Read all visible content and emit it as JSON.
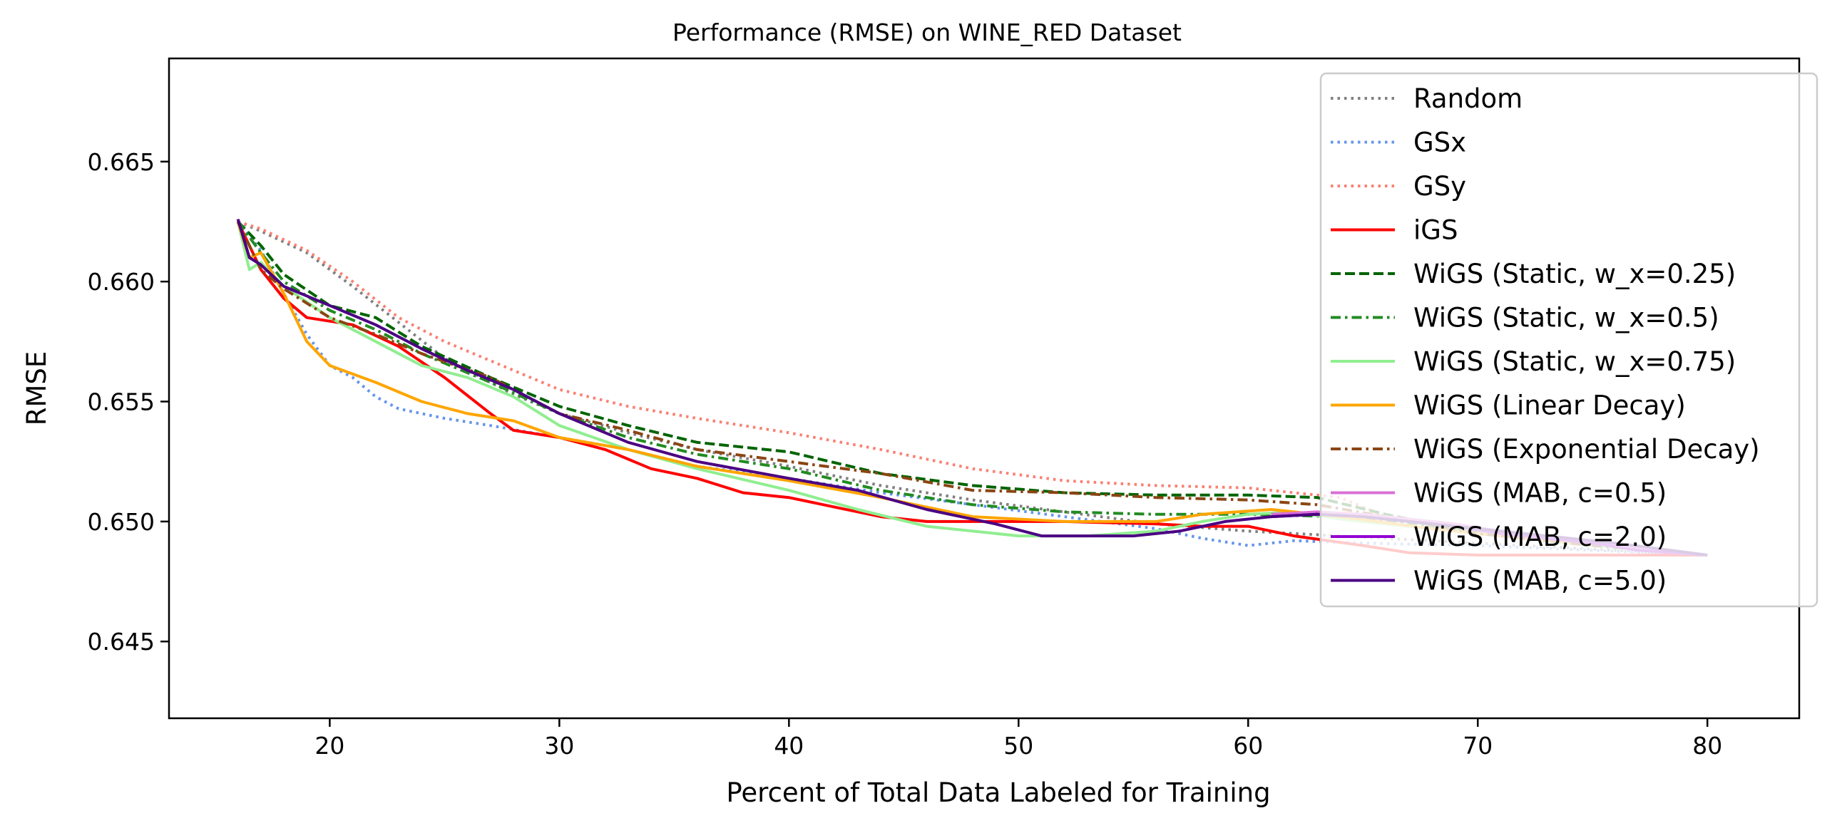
{
  "chart_data": {
    "type": "line",
    "title": "Performance (RMSE) on WINE_RED Dataset",
    "xlabel": "Percent of Total Data Labeled for Training",
    "ylabel": "RMSE",
    "xlim": [
      13,
      84
    ],
    "ylim": [
      0.6418,
      0.6693
    ],
    "xticks": [
      20,
      30,
      40,
      50,
      60,
      70,
      80
    ],
    "yticks": [
      0.645,
      0.65,
      0.655,
      0.66,
      0.665
    ],
    "xtick_labels": [
      "20",
      "30",
      "40",
      "50",
      "60",
      "70",
      "80"
    ],
    "ytick_labels": [
      "0.645",
      "0.650",
      "0.655",
      "0.660",
      "0.665"
    ],
    "grid": false,
    "legend_position": "top-right",
    "series": [
      {
        "name": "Random",
        "color": "#808080",
        "dash": "dotted",
        "points": [
          [
            16,
            0.6625
          ],
          [
            17,
            0.6621
          ],
          [
            19,
            0.6612
          ],
          [
            21,
            0.6598
          ],
          [
            23,
            0.6583
          ],
          [
            25,
            0.6568
          ],
          [
            28,
            0.6553
          ],
          [
            30,
            0.6545
          ],
          [
            33,
            0.6537
          ],
          [
            36,
            0.653
          ],
          [
            40,
            0.6523
          ],
          [
            44,
            0.6515
          ],
          [
            48,
            0.6509
          ],
          [
            52,
            0.6504
          ],
          [
            56,
            0.6499
          ],
          [
            60,
            0.6496
          ],
          [
            64,
            0.6494
          ],
          [
            68,
            0.6492
          ],
          [
            72,
            0.649
          ],
          [
            76,
            0.6488
          ],
          [
            80,
            0.6486
          ]
        ]
      },
      {
        "name": "GSx",
        "color": "#6495ED",
        "dash": "dotted",
        "points": [
          [
            16,
            0.6625
          ],
          [
            17,
            0.6613
          ],
          [
            18,
            0.6595
          ],
          [
            19,
            0.6578
          ],
          [
            20,
            0.6565
          ],
          [
            21,
            0.656
          ],
          [
            22,
            0.6552
          ],
          [
            23,
            0.6547
          ],
          [
            25,
            0.6543
          ],
          [
            27,
            0.654
          ],
          [
            30,
            0.6535
          ],
          [
            33,
            0.653
          ],
          [
            36,
            0.6523
          ],
          [
            40,
            0.6518
          ],
          [
            44,
            0.6512
          ],
          [
            48,
            0.6507
          ],
          [
            52,
            0.6502
          ],
          [
            56,
            0.6497
          ],
          [
            58,
            0.6493
          ],
          [
            60,
            0.649
          ],
          [
            62,
            0.6492
          ],
          [
            65,
            0.6491
          ],
          [
            70,
            0.649
          ],
          [
            75,
            0.6488
          ],
          [
            80,
            0.6486
          ]
        ]
      },
      {
        "name": "GSy",
        "color": "#FA8072",
        "dash": "dotted",
        "points": [
          [
            16,
            0.6625
          ],
          [
            17,
            0.6622
          ],
          [
            19,
            0.6613
          ],
          [
            21,
            0.66
          ],
          [
            23,
            0.6585
          ],
          [
            25,
            0.6575
          ],
          [
            28,
            0.6563
          ],
          [
            30,
            0.6555
          ],
          [
            33,
            0.6548
          ],
          [
            36,
            0.6543
          ],
          [
            40,
            0.6537
          ],
          [
            44,
            0.653
          ],
          [
            48,
            0.6522
          ],
          [
            52,
            0.6517
          ],
          [
            56,
            0.6515
          ],
          [
            60,
            0.6514
          ],
          [
            64,
            0.651
          ],
          [
            66,
            0.6502
          ],
          [
            70,
            0.6495
          ],
          [
            75,
            0.649
          ],
          [
            80,
            0.6486
          ]
        ]
      },
      {
        "name": "iGS",
        "color": "#FF0000",
        "dash": "solid",
        "points": [
          [
            16,
            0.6625
          ],
          [
            17,
            0.6605
          ],
          [
            18,
            0.6593
          ],
          [
            19,
            0.6585
          ],
          [
            21,
            0.6582
          ],
          [
            23,
            0.6573
          ],
          [
            25,
            0.656
          ],
          [
            27,
            0.6545
          ],
          [
            28,
            0.6538
          ],
          [
            30,
            0.6535
          ],
          [
            32,
            0.653
          ],
          [
            34,
            0.6522
          ],
          [
            36,
            0.6518
          ],
          [
            38,
            0.6512
          ],
          [
            40,
            0.651
          ],
          [
            42,
            0.6506
          ],
          [
            44,
            0.6502
          ],
          [
            46,
            0.65
          ],
          [
            48,
            0.65
          ],
          [
            52,
            0.65
          ],
          [
            56,
            0.6499
          ],
          [
            58,
            0.6498
          ],
          [
            60,
            0.6498
          ],
          [
            62,
            0.6494
          ],
          [
            65,
            0.649
          ],
          [
            67,
            0.6487
          ],
          [
            70,
            0.6486
          ],
          [
            75,
            0.6486
          ],
          [
            80,
            0.6486
          ]
        ]
      },
      {
        "name": "WiGS (Static, w_x=0.25)",
        "color": "#006400",
        "dash": "dashed",
        "points": [
          [
            16,
            0.6625
          ],
          [
            17,
            0.6615
          ],
          [
            18,
            0.6603
          ],
          [
            20,
            0.659
          ],
          [
            22,
            0.6585
          ],
          [
            24,
            0.6573
          ],
          [
            27,
            0.656
          ],
          [
            30,
            0.6548
          ],
          [
            33,
            0.654
          ],
          [
            36,
            0.6533
          ],
          [
            40,
            0.6529
          ],
          [
            44,
            0.652
          ],
          [
            48,
            0.6515
          ],
          [
            52,
            0.6512
          ],
          [
            56,
            0.6511
          ],
          [
            60,
            0.6511
          ],
          [
            63,
            0.651
          ],
          [
            66,
            0.6503
          ],
          [
            70,
            0.6495
          ],
          [
            75,
            0.649
          ],
          [
            80,
            0.6486
          ]
        ]
      },
      {
        "name": "WiGS (Static, w_x=0.5)",
        "color": "#228B22",
        "dash": "dashdot",
        "points": [
          [
            16,
            0.6625
          ],
          [
            17,
            0.6612
          ],
          [
            18,
            0.66
          ],
          [
            20,
            0.6588
          ],
          [
            22,
            0.658
          ],
          [
            24,
            0.657
          ],
          [
            27,
            0.6558
          ],
          [
            30,
            0.6545
          ],
          [
            33,
            0.6535
          ],
          [
            36,
            0.6528
          ],
          [
            40,
            0.6522
          ],
          [
            44,
            0.6513
          ],
          [
            48,
            0.6507
          ],
          [
            52,
            0.6504
          ],
          [
            56,
            0.6503
          ],
          [
            60,
            0.6503
          ],
          [
            64,
            0.6502
          ],
          [
            68,
            0.6498
          ],
          [
            72,
            0.6494
          ],
          [
            76,
            0.649
          ],
          [
            80,
            0.6486
          ]
        ]
      },
      {
        "name": "WiGS (Static, w_x=0.75)",
        "color": "#90EE90",
        "dash": "solid",
        "points": [
          [
            16,
            0.6625
          ],
          [
            16.5,
            0.6605
          ],
          [
            17,
            0.6608
          ],
          [
            18,
            0.6598
          ],
          [
            20,
            0.6585
          ],
          [
            22,
            0.6575
          ],
          [
            24,
            0.6565
          ],
          [
            26,
            0.656
          ],
          [
            28,
            0.6552
          ],
          [
            30,
            0.654
          ],
          [
            33,
            0.653
          ],
          [
            36,
            0.6522
          ],
          [
            40,
            0.6513
          ],
          [
            43,
            0.6505
          ],
          [
            46,
            0.6498
          ],
          [
            50,
            0.6494
          ],
          [
            53,
            0.6494
          ],
          [
            56,
            0.6496
          ],
          [
            58,
            0.65
          ],
          [
            60,
            0.6503
          ],
          [
            62,
            0.6504
          ],
          [
            64,
            0.6501
          ],
          [
            68,
            0.6497
          ],
          [
            72,
            0.6493
          ],
          [
            76,
            0.6489
          ],
          [
            80,
            0.6486
          ]
        ]
      },
      {
        "name": "WiGS (Linear Decay)",
        "color": "#FFA500",
        "dash": "solid",
        "points": [
          [
            16,
            0.6625
          ],
          [
            16.5,
            0.661
          ],
          [
            17,
            0.6612
          ],
          [
            18,
            0.6595
          ],
          [
            19,
            0.6575
          ],
          [
            20,
            0.6565
          ],
          [
            22,
            0.6558
          ],
          [
            24,
            0.655
          ],
          [
            26,
            0.6545
          ],
          [
            28,
            0.6542
          ],
          [
            30,
            0.6535
          ],
          [
            33,
            0.653
          ],
          [
            36,
            0.6523
          ],
          [
            40,
            0.6517
          ],
          [
            44,
            0.651
          ],
          [
            48,
            0.6502
          ],
          [
            52,
            0.65
          ],
          [
            56,
            0.65
          ],
          [
            58,
            0.6503
          ],
          [
            61,
            0.6505
          ],
          [
            64,
            0.6502
          ],
          [
            68,
            0.6497
          ],
          [
            72,
            0.6493
          ],
          [
            76,
            0.649
          ],
          [
            80,
            0.6486
          ]
        ]
      },
      {
        "name": "WiGS (Exponential Decay)",
        "color": "#8B4513",
        "dash": "dashdot",
        "points": [
          [
            16,
            0.6625
          ],
          [
            17,
            0.6605
          ],
          [
            18,
            0.6597
          ],
          [
            20,
            0.6585
          ],
          [
            22,
            0.6578
          ],
          [
            24,
            0.657
          ],
          [
            27,
            0.656
          ],
          [
            30,
            0.6545
          ],
          [
            33,
            0.6538
          ],
          [
            36,
            0.653
          ],
          [
            40,
            0.6525
          ],
          [
            44,
            0.652
          ],
          [
            48,
            0.6513
          ],
          [
            52,
            0.6512
          ],
          [
            56,
            0.651
          ],
          [
            60,
            0.6509
          ],
          [
            63,
            0.6507
          ],
          [
            66,
            0.6502
          ],
          [
            70,
            0.6495
          ],
          [
            75,
            0.649
          ],
          [
            80,
            0.6486
          ]
        ]
      },
      {
        "name": "WiGS (MAB, c=0.5)",
        "color": "#DA70D6",
        "dash": "solid",
        "points": [
          [
            61,
            0.6503
          ],
          [
            63,
            0.6504
          ],
          [
            65,
            0.6503
          ],
          [
            67,
            0.6501
          ],
          [
            69,
            0.6499
          ],
          [
            71,
            0.6496
          ],
          [
            73,
            0.6494
          ],
          [
            75,
            0.6492
          ],
          [
            77,
            0.6489
          ],
          [
            80,
            0.6486
          ]
        ]
      },
      {
        "name": "WiGS (MAB, c=2.0)",
        "color": "#9400D3",
        "dash": "solid",
        "points": [
          [
            61,
            0.6502
          ],
          [
            63,
            0.6503
          ],
          [
            65,
            0.6502
          ],
          [
            67,
            0.65
          ],
          [
            69,
            0.6498
          ],
          [
            71,
            0.6495
          ],
          [
            73,
            0.6493
          ],
          [
            75,
            0.6491
          ],
          [
            77,
            0.6488
          ],
          [
            80,
            0.6486
          ]
        ]
      },
      {
        "name": "WiGS (MAB, c=5.0)",
        "color": "#4B0082",
        "dash": "solid",
        "points": [
          [
            16,
            0.6626
          ],
          [
            16.5,
            0.661
          ],
          [
            17,
            0.6607
          ],
          [
            18,
            0.6598
          ],
          [
            20,
            0.659
          ],
          [
            22,
            0.6582
          ],
          [
            24,
            0.6572
          ],
          [
            26,
            0.6563
          ],
          [
            28,
            0.6555
          ],
          [
            30,
            0.6545
          ],
          [
            33,
            0.6533
          ],
          [
            36,
            0.6525
          ],
          [
            40,
            0.6518
          ],
          [
            43,
            0.6513
          ],
          [
            46,
            0.6505
          ],
          [
            49,
            0.6499
          ],
          [
            51,
            0.6494
          ],
          [
            53,
            0.6494
          ],
          [
            55,
            0.6494
          ],
          [
            57,
            0.6496
          ],
          [
            59,
            0.65
          ],
          [
            61,
            0.6502
          ],
          [
            63,
            0.6503
          ],
          [
            65,
            0.6502
          ],
          [
            67,
            0.65
          ],
          [
            70,
            0.6497
          ],
          [
            73,
            0.6494
          ],
          [
            76,
            0.6491
          ],
          [
            80,
            0.6486
          ]
        ]
      }
    ]
  }
}
